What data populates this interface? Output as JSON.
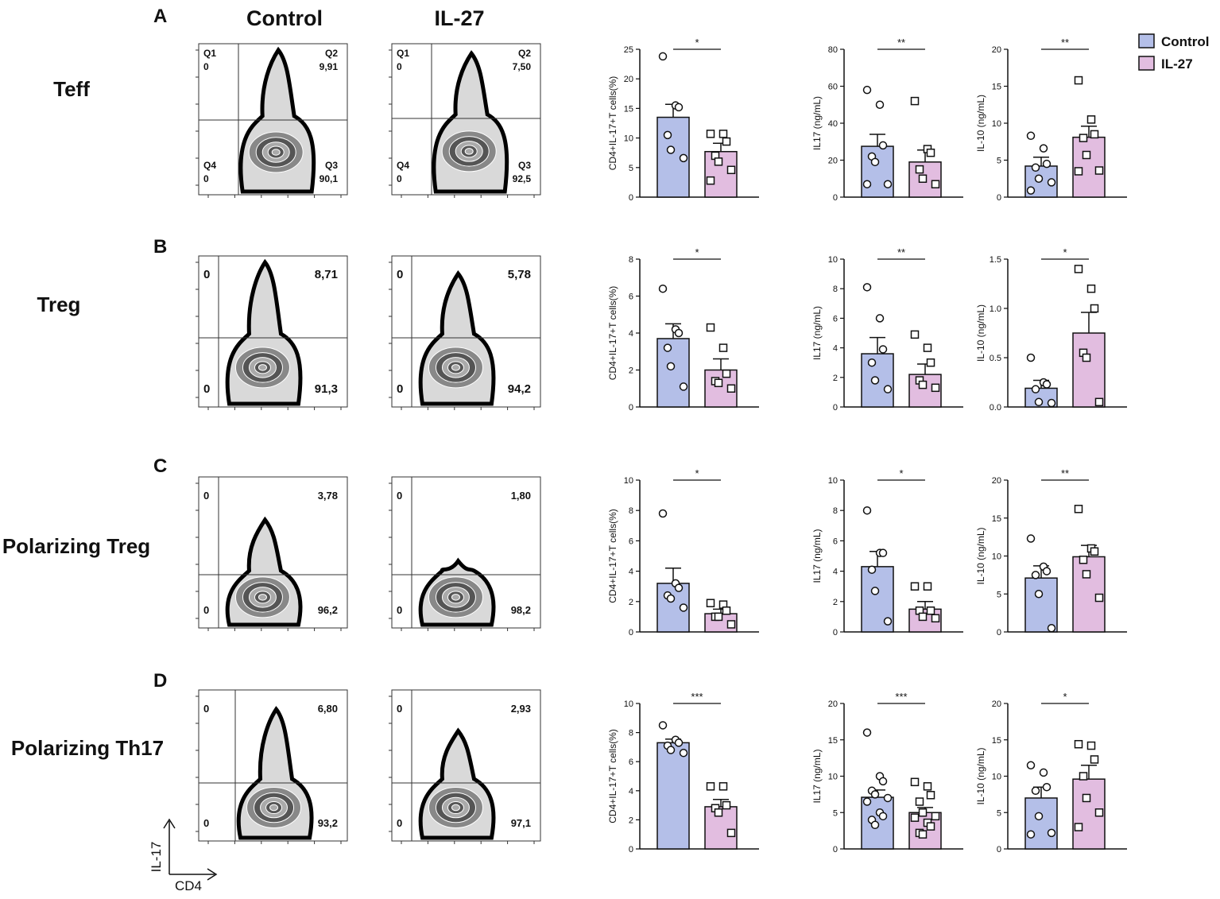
{
  "headers": {
    "control": "Control",
    "il27": "IL-27"
  },
  "legend": {
    "control": "Control",
    "il27": "IL-27"
  },
  "colors": {
    "control": "#b4bfe8",
    "il27": "#e2bde0",
    "axis": "#111111"
  },
  "flow_axes": {
    "y": "IL-17",
    "x": "CD4"
  },
  "sig_marks": [
    "*",
    "**",
    "***"
  ],
  "rows": [
    {
      "letter": "A",
      "label": "Teff",
      "flow": [
        {
          "q1": "Q1",
          "q1v": "0",
          "q2": "Q2",
          "q2v": "9,91",
          "q4": "Q4",
          "q4v": "0",
          "q3": "Q3",
          "q3v": "90,1"
        },
        {
          "q1": "Q1",
          "q1v": "0",
          "q2": "Q2",
          "q2v": "7,50",
          "q4": "Q4",
          "q4v": "0",
          "q3": "Q3",
          "q3v": "92,5"
        }
      ]
    },
    {
      "letter": "B",
      "label": "Treg",
      "flow": [
        {
          "q1v": "0",
          "q2v": "8,71",
          "q4v": "0",
          "q3v": "91,3"
        },
        {
          "q1v": "0",
          "q2v": "5,78",
          "q4v": "0",
          "q3v": "94,2"
        }
      ]
    },
    {
      "letter": "C",
      "label": "Polarizing Treg",
      "flow": [
        {
          "q1v": "0",
          "q2v": "3,78",
          "q4v": "0",
          "q3v": "96,2"
        },
        {
          "q1v": "0",
          "q2v": "1,80",
          "q4v": "0",
          "q3v": "98,2"
        }
      ]
    },
    {
      "letter": "D",
      "label": "Polarizing Th17",
      "flow": [
        {
          "q1v": "0",
          "q2v": "6,80",
          "q4v": "0",
          "q3v": "93,2"
        },
        {
          "q1v": "0",
          "q2v": "2,93",
          "q4v": "0",
          "q3v": "97,1"
        }
      ]
    }
  ],
  "chart_data": [
    {
      "type": "bar",
      "row": "A",
      "ylabel": "CD4+IL-17+T cells(%)",
      "ylim": [
        0,
        25
      ],
      "yticks": [
        "0",
        "5",
        "10",
        "15",
        "20",
        "25"
      ],
      "significance": "*",
      "categories": [
        "Control",
        "IL-27"
      ],
      "means": [
        13.5,
        7.7
      ],
      "sem": [
        2.2,
        1.4
      ],
      "points": [
        [
          23.8,
          15.5,
          15.2,
          10.5,
          8.0,
          6.6
        ],
        [
          10.7,
          10.7,
          9.4,
          7.0,
          6.0,
          4.6,
          2.8
        ]
      ]
    },
    {
      "type": "bar",
      "row": "A",
      "ylabel": "IL17 (ng/mL)",
      "ylim": [
        0,
        80
      ],
      "yticks": [
        "0",
        "20",
        "40",
        "60",
        "80"
      ],
      "significance": "**",
      "categories": [
        "Control",
        "IL-27"
      ],
      "means": [
        27.5,
        19
      ],
      "sem": [
        6.5,
        6.5
      ],
      "points": [
        [
          58,
          50,
          28,
          22,
          19,
          7,
          7
        ],
        [
          52,
          26,
          24,
          15,
          10,
          7
        ]
      ]
    },
    {
      "type": "bar",
      "row": "A",
      "ylabel": "IL-10 (ng/mL)",
      "ylim": [
        0,
        20
      ],
      "yticks": [
        "0",
        "5",
        "10",
        "15",
        "20"
      ],
      "significance": "**",
      "categories": [
        "Control",
        "IL-27"
      ],
      "means": [
        4.2,
        8.1
      ],
      "sem": [
        1.2,
        1.5
      ],
      "points": [
        [
          8.3,
          6.6,
          4.5,
          4.0,
          2.5,
          2.0,
          0.9
        ],
        [
          15.8,
          10.5,
          8.5,
          8.0,
          5.7,
          3.6,
          3.5
        ]
      ]
    },
    {
      "type": "bar",
      "row": "B",
      "ylabel": "CD4+IL-17+T cells(%)",
      "ylim": [
        0,
        8
      ],
      "yticks": [
        "0",
        "2",
        "4",
        "6",
        "8"
      ],
      "significance": "*",
      "categories": [
        "Control",
        "IL-27"
      ],
      "means": [
        3.7,
        2.0
      ],
      "sem": [
        0.8,
        0.6
      ],
      "points": [
        [
          6.4,
          4.2,
          4.0,
          3.2,
          2.2,
          1.1
        ],
        [
          4.3,
          3.2,
          1.8,
          1.4,
          1.3,
          1.0
        ]
      ]
    },
    {
      "type": "bar",
      "row": "B",
      "ylabel": "IL17 (ng/mL)",
      "ylim": [
        0,
        10
      ],
      "yticks": [
        "0",
        "2",
        "4",
        "6",
        "8",
        "10"
      ],
      "significance": "**",
      "categories": [
        "Control",
        "IL-27"
      ],
      "means": [
        3.6,
        2.2
      ],
      "sem": [
        1.1,
        0.7
      ],
      "points": [
        [
          8.1,
          6.0,
          3.9,
          3.0,
          1.8,
          1.2
        ],
        [
          4.9,
          4.0,
          3.0,
          1.8,
          1.5,
          1.3
        ]
      ]
    },
    {
      "type": "bar",
      "row": "B",
      "ylabel": "IL-10 (ng/mL)",
      "ylim": [
        0,
        1.5
      ],
      "yticks": [
        "0.0",
        "0.5",
        "1.0",
        "1.5"
      ],
      "significance": "*",
      "categories": [
        "Control",
        "IL-27"
      ],
      "means": [
        0.19,
        0.75
      ],
      "sem": [
        0.08,
        0.21
      ],
      "points": [
        [
          0.5,
          0.25,
          0.23,
          0.18,
          0.05,
          0.04
        ],
        [
          1.4,
          1.2,
          1.0,
          0.55,
          0.5,
          0.05
        ]
      ]
    },
    {
      "type": "bar",
      "row": "C",
      "ylabel": "CD4+IL-17+T cells(%)",
      "ylim": [
        0,
        10
      ],
      "yticks": [
        "0",
        "2",
        "4",
        "6",
        "8",
        "10"
      ],
      "significance": "*",
      "categories": [
        "Control",
        "IL-27"
      ],
      "means": [
        3.2,
        1.2
      ],
      "sem": [
        1.0,
        0.3
      ],
      "points": [
        [
          7.8,
          3.2,
          2.9,
          2.4,
          2.2,
          1.6
        ],
        [
          1.9,
          1.8,
          1.4,
          1.0,
          1.0,
          0.5
        ]
      ]
    },
    {
      "type": "bar",
      "row": "C",
      "ylabel": "IL17 (ng/mL)",
      "ylim": [
        0,
        10
      ],
      "yticks": [
        "0",
        "2",
        "4",
        "6",
        "8",
        "10"
      ],
      "significance": "*",
      "categories": [
        "Control",
        "IL-27"
      ],
      "means": [
        4.3,
        1.5
      ],
      "sem": [
        1.0,
        0.5
      ],
      "points": [
        [
          8.0,
          5.2,
          5.2,
          4.1,
          2.7,
          0.7
        ],
        [
          3.0,
          3.0,
          1.4,
          1.4,
          1.0,
          0.9
        ]
      ]
    },
    {
      "type": "bar",
      "row": "C",
      "ylabel": "IL-10 (ng/mL)",
      "ylim": [
        0,
        20
      ],
      "yticks": [
        "0",
        "5",
        "10",
        "15",
        "20"
      ],
      "significance": "**",
      "categories": [
        "Control",
        "IL-27"
      ],
      "means": [
        7.1,
        9.9
      ],
      "sem": [
        1.6,
        1.5
      ],
      "points": [
        [
          12.3,
          8.6,
          8.0,
          7.5,
          5.0,
          0.5
        ],
        [
          16.2,
          11.0,
          10.6,
          9.5,
          7.6,
          4.5
        ]
      ]
    },
    {
      "type": "bar",
      "row": "D",
      "ylabel": "CD4+IL-17+T cells(%)",
      "ylim": [
        0,
        10
      ],
      "yticks": [
        "0",
        "2",
        "4",
        "6",
        "8",
        "10"
      ],
      "significance": "***",
      "categories": [
        "Control",
        "IL-27"
      ],
      "means": [
        7.3,
        2.9
      ],
      "sem": [
        0.25,
        0.5
      ],
      "points": [
        [
          8.5,
          7.5,
          7.3,
          7.1,
          6.8,
          6.6
        ],
        [
          4.3,
          4.3,
          3.0,
          2.8,
          2.5,
          1.1
        ]
      ]
    },
    {
      "type": "bar",
      "row": "D",
      "ylabel": "IL17 (ng/mL)",
      "ylim": [
        0,
        20
      ],
      "yticks": [
        "0",
        "5",
        "10",
        "15",
        "20"
      ],
      "significance": "***",
      "categories": [
        "Control",
        "IL-27"
      ],
      "means": [
        7.1,
        5.0
      ],
      "sem": [
        1.0,
        0.7
      ],
      "points": [
        [
          16,
          10,
          9.3,
          8,
          7.5,
          7,
          6.5,
          5,
          4.5,
          4,
          3.3
        ],
        [
          9.2,
          8.6,
          7.4,
          6.5,
          5,
          4.5,
          4.3,
          3.6,
          3.1,
          2.2,
          2.0
        ]
      ]
    },
    {
      "type": "bar",
      "row": "D",
      "ylabel": "IL-10 (ng/mL)",
      "ylim": [
        0,
        20
      ],
      "yticks": [
        "0",
        "5",
        "10",
        "15",
        "20"
      ],
      "significance": "*",
      "categories": [
        "Control",
        "IL-27"
      ],
      "means": [
        7.0,
        9.6
      ],
      "sem": [
        1.5,
        1.9
      ],
      "points": [
        [
          11.5,
          10.5,
          8.5,
          8.0,
          4.5,
          2.2,
          2.0
        ],
        [
          14.4,
          14.2,
          12.3,
          10.0,
          7.0,
          5.0,
          3.0
        ]
      ]
    }
  ]
}
